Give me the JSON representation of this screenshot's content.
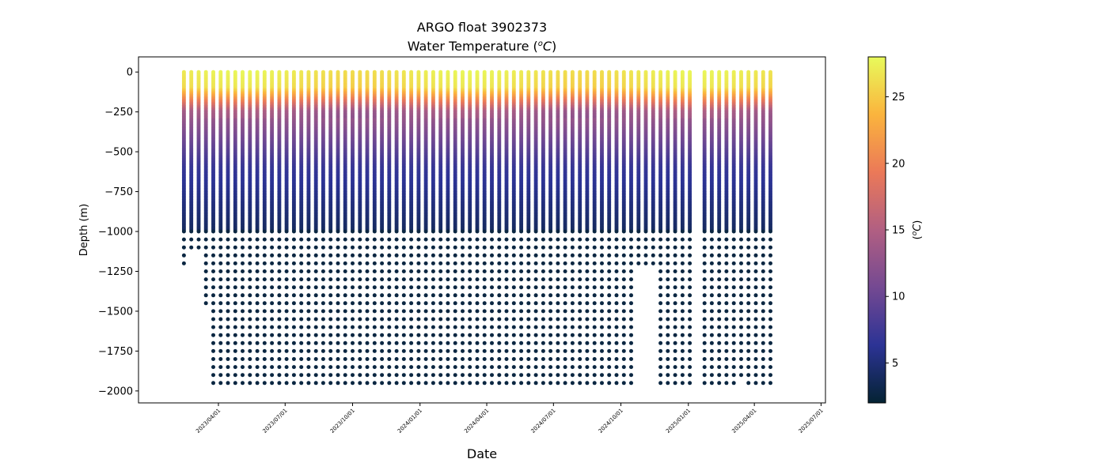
{
  "chart_data": {
    "type": "scatter",
    "title_line1": "ARGO float 3902373",
    "title_line2_main": "Water Temperature (",
    "title_line2_unit_sup": "o",
    "title_line2_unit": "C",
    "title_line2_close": ")",
    "xlabel": "Date",
    "ylabel": "Depth (m)",
    "ylim": [
      -2075,
      95
    ],
    "xlim": [
      "2022-12-13",
      "2025-07-07"
    ],
    "yticks": [
      0,
      -250,
      -500,
      -750,
      -1000,
      -1250,
      -1500,
      -1750,
      -2000
    ],
    "ytick_labels": [
      "0",
      "−250",
      "−500",
      "−750",
      "−1000",
      "−1250",
      "−1500",
      "−1750",
      "−2000"
    ],
    "xticks": [
      "2023-04-01",
      "2023-07-01",
      "2023-10-01",
      "2024-01-01",
      "2024-04-01",
      "2024-07-01",
      "2024-10-01",
      "2025-01-01",
      "2025-04-01",
      "2025-07-01"
    ],
    "xtick_labels": [
      "2023/04/01",
      "2023/07/01",
      "2023/10/01",
      "2024/01/01",
      "2024/04/01",
      "2024/07/01",
      "2024/10/01",
      "2025/01/01",
      "2025/04/01",
      "2025/07/01"
    ],
    "profile_start_date": "2023-02-13",
    "profile_interval_days": 10,
    "profile_count": 81,
    "missing_profiles": [
      70
    ],
    "profile_max_depths": {
      "0": -1240,
      "1": -1140,
      "2": -1140,
      "3": -1490,
      "61": -1975,
      "62": -1220,
      "63": -1220,
      "64": -1220,
      "76": -1930
    },
    "default_max_depth": -1975,
    "upper_sample_spacing_m": 10,
    "deep_sample_spacing_m": 50,
    "deep_start_m": -1000,
    "surface_temperature_c": 27,
    "thermocline_depth_m": -100,
    "temp_at_250m_c": 14,
    "temp_at_600m_c": 7,
    "temp_at_1000m_c": 4,
    "temp_at_2000m_c": 2.5,
    "grid": false,
    "legend": "none",
    "colorbar": {
      "label_prefix": "(",
      "label_sup": "o",
      "label_unit": "C",
      "label_suffix": ")",
      "range": [
        2,
        28
      ],
      "ticks": [
        5,
        10,
        15,
        20,
        25
      ],
      "tick_labels": [
        "5",
        "10",
        "15",
        "20",
        "25"
      ],
      "colormap": "thermal",
      "stops": [
        "#042333",
        "#2c3395",
        "#744992",
        "#b15f82",
        "#eb7958",
        "#fbb43d",
        "#e8fa5b"
      ]
    },
    "marker_color_deep": "#0b2742",
    "marker_size": 5
  }
}
